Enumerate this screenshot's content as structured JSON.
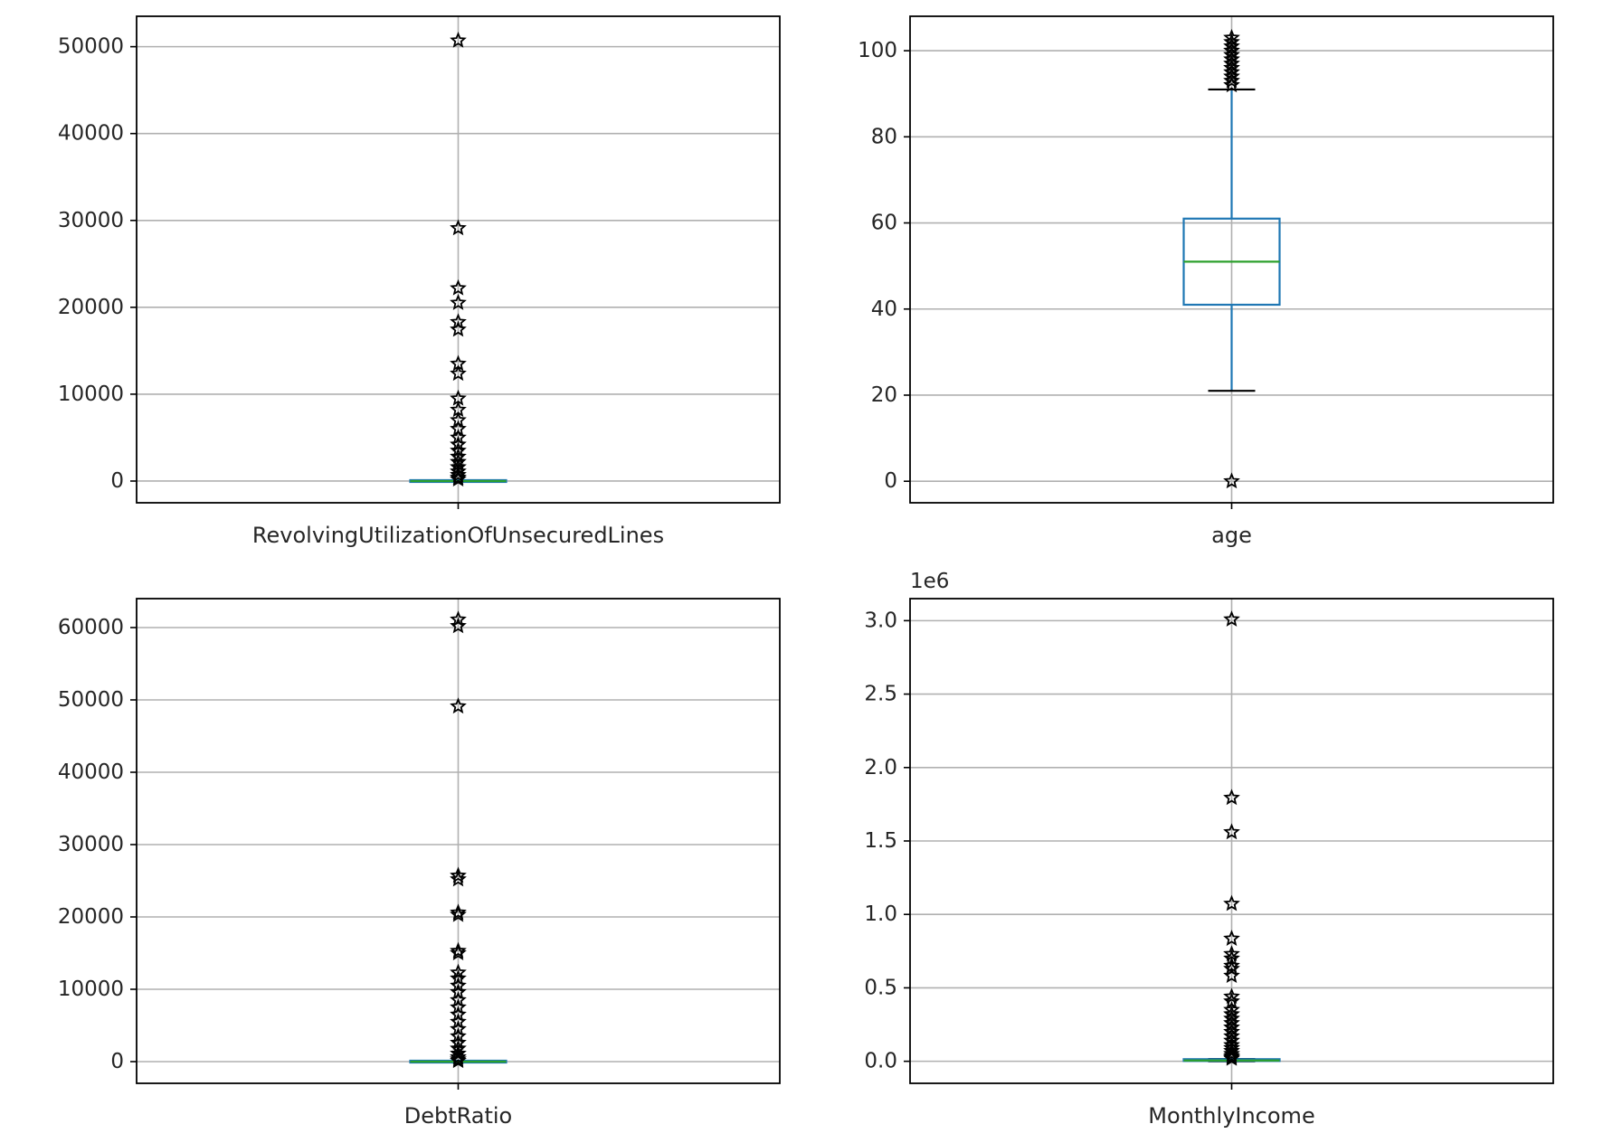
{
  "chart_data": [
    {
      "type": "box",
      "xlabel": "RevolvingUtilizationOfUnsecuredLines",
      "ylim": [
        -2500,
        53500
      ],
      "yticks": [
        0,
        10000,
        20000,
        30000,
        40000,
        50000
      ],
      "ytick_labels": [
        "0",
        "10000",
        "20000",
        "30000",
        "40000",
        "50000"
      ],
      "offset_text": "",
      "grid": true,
      "box": {
        "q1": 0.03,
        "median": 0.15,
        "q3": 0.56,
        "whisker_low": 0,
        "whisker_high": 1.35
      },
      "outliers": [
        50708,
        29110,
        22198,
        20514,
        18300,
        17441,
        13498,
        12369,
        9500,
        8200,
        7000,
        6000,
        5000,
        4200,
        3500,
        2800,
        2200,
        1600,
        1100,
        700,
        400,
        200
      ]
    },
    {
      "type": "box",
      "xlabel": "age",
      "ylim": [
        -5,
        108
      ],
      "yticks": [
        0,
        20,
        40,
        60,
        80,
        100
      ],
      "ytick_labels": [
        "0",
        "20",
        "40",
        "60",
        "80",
        "100"
      ],
      "offset_text": "",
      "grid": true,
      "box": {
        "q1": 41,
        "median": 51,
        "q3": 61,
        "whisker_low": 21,
        "whisker_high": 91
      },
      "outliers": [
        0,
        92,
        93,
        94,
        95,
        96,
        97,
        98,
        99,
        100,
        101,
        102,
        103
      ]
    },
    {
      "type": "box",
      "xlabel": "DebtRatio",
      "ylim": [
        -3000,
        64000
      ],
      "yticks": [
        0,
        10000,
        20000,
        30000,
        40000,
        50000,
        60000
      ],
      "ytick_labels": [
        "0",
        "10000",
        "20000",
        "30000",
        "40000",
        "50000",
        "60000"
      ],
      "offset_text": "",
      "grid": true,
      "box": {
        "q1": 0.18,
        "median": 0.37,
        "q3": 0.87,
        "whisker_low": 0,
        "whisker_high": 1.9
      },
      "outliers": [
        61106,
        60212,
        49112,
        25700,
        25200,
        20600,
        20300,
        15300,
        15000,
        12300,
        11500,
        10500,
        9600,
        8500,
        7500,
        6500,
        5500,
        4500,
        3500,
        2600,
        1800,
        1100,
        600,
        300,
        100
      ]
    },
    {
      "type": "box",
      "xlabel": "MonthlyIncome",
      "ylim": [
        -150000,
        3150000
      ],
      "yticks": [
        0,
        500000,
        1000000,
        1500000,
        2000000,
        2500000,
        3000000
      ],
      "ytick_labels": [
        "0.0",
        "0.5",
        "1.0",
        "1.5",
        "2.0",
        "2.5",
        "3.0"
      ],
      "offset_text": "1e6",
      "grid": true,
      "box": {
        "q1": 3400,
        "median": 5400,
        "q3": 8250,
        "whisker_low": 0,
        "whisker_high": 15500
      },
      "outliers": [
        3008750,
        1794060,
        1560100,
        1072500,
        835040,
        730000,
        699530,
        650250,
        629000,
        582369,
        440000,
        408000,
        350000,
        320000,
        290000,
        260000,
        230000,
        200000,
        170000,
        140000,
        110000,
        90000,
        70000,
        50000,
        35000,
        25000,
        18000
      ]
    }
  ]
}
